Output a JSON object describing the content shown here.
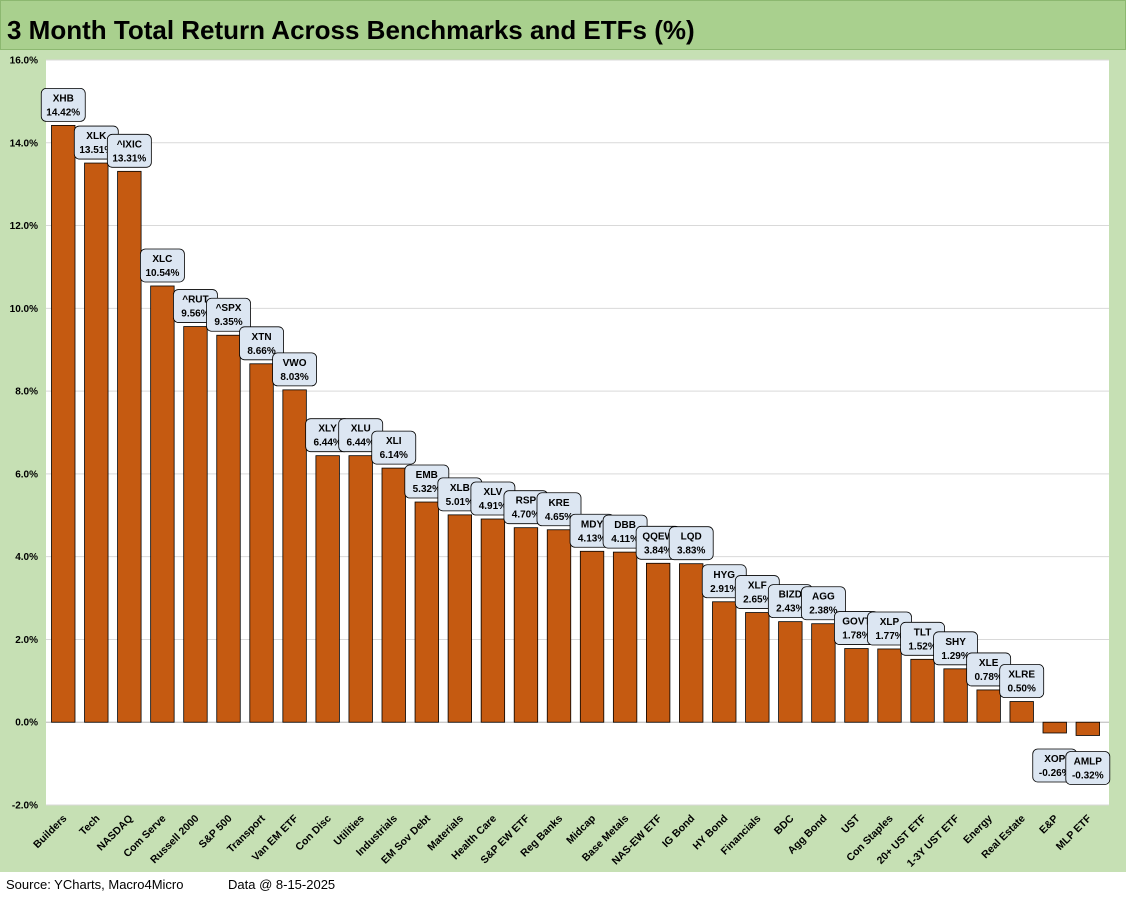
{
  "page_title": "3 Month Total Return Across Benchmarks and ETFs (%)",
  "footer": {
    "source": "Source: YCharts, Macro4Micro",
    "data_date": "Data @ 8-15-2025"
  },
  "colors": {
    "title_band": "#a9d08e",
    "outer_background": "#c6e0b4",
    "plot_background": "#ffffff",
    "bar_fill": "#c55a11",
    "gridline": "#d9d9d9",
    "label_fill": "#dce6f2"
  },
  "chart_data": {
    "type": "bar",
    "title": "3 Month Total Return Across Benchmarks and ETFs (%)",
    "xlabel": "",
    "ylabel": "",
    "ylim": [
      -2,
      16
    ],
    "y_ticks": [
      -2,
      0,
      2,
      4,
      6,
      8,
      10,
      12,
      14,
      16
    ],
    "y_tick_labels": [
      "-2.0%",
      "0.0%",
      "2.0%",
      "4.0%",
      "6.0%",
      "8.0%",
      "10.0%",
      "12.0%",
      "14.0%",
      "16.0%"
    ],
    "grid": true,
    "categories": [
      "Builders",
      "Tech",
      "NASDAQ",
      "Com Serve",
      "Russell 2000",
      "S&P 500",
      "Transport",
      "Van EM ETF",
      "Con Disc",
      "Utilities",
      "Industrials",
      "EM Sov Debt",
      "Materials",
      "Health Care",
      "S&P EW ETF",
      "Reg Banks",
      "Midcap",
      "Base Metals",
      "NAS-EW ETF",
      "IG Bond",
      "HY Bond",
      "Financials",
      "BDC",
      "Agg Bond",
      "UST",
      "Con Staples",
      "20+ UST ETF",
      "1-3Y UST ETF",
      "Energy",
      "Real Estate",
      "E&P",
      "MLP ETF"
    ],
    "tickers": [
      "XHB",
      "XLK",
      "^IXIC",
      "XLC",
      "^RUT",
      "^SPX",
      "XTN",
      "VWO",
      "XLY",
      "XLU",
      "XLI",
      "EMB",
      "XLB",
      "XLV",
      "RSP",
      "KRE",
      "MDY",
      "DBB",
      "QQEW",
      "LQD",
      "HYG",
      "XLF",
      "BIZD",
      "AGG",
      "GOVT",
      "XLP",
      "TLT",
      "SHY",
      "XLE",
      "XLRE",
      "XOP",
      "AMLP"
    ],
    "values": [
      14.42,
      13.51,
      13.31,
      10.54,
      9.56,
      9.35,
      8.66,
      8.03,
      6.44,
      6.44,
      6.14,
      5.32,
      5.01,
      4.91,
      4.7,
      4.65,
      4.13,
      4.11,
      3.84,
      3.83,
      2.91,
      2.65,
      2.43,
      2.38,
      1.78,
      1.77,
      1.52,
      1.29,
      0.78,
      0.5,
      -0.26,
      -0.32
    ],
    "value_labels": [
      "14.42%",
      "13.51%",
      "13.31%",
      "10.54%",
      "9.56%",
      "9.35%",
      "8.66%",
      "8.03%",
      "6.44%",
      "6.44%",
      "6.14%",
      "5.32%",
      "5.01%",
      "4.91%",
      "4.70%",
      "4.65%",
      "4.13%",
      "4.11%",
      "3.84%",
      "3.83%",
      "2.91%",
      "2.65%",
      "2.43%",
      "2.38%",
      "1.78%",
      "1.77%",
      "1.52%",
      "1.29%",
      "0.78%",
      "0.50%",
      "-0.26%",
      "-0.32%"
    ]
  }
}
